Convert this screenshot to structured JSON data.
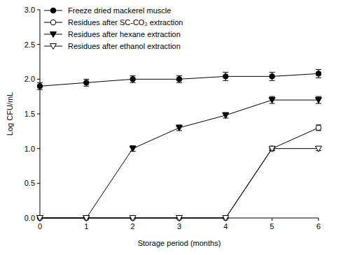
{
  "chart_data": {
    "type": "line",
    "x_label": "Storage period (months)",
    "y_label": "Log CFU/mL",
    "x": [
      0,
      1,
      2,
      3,
      4,
      5,
      6
    ],
    "xlim": [
      0,
      6
    ],
    "xticks": [
      0,
      1,
      2,
      3,
      4,
      5,
      6
    ],
    "ylim": [
      0,
      3
    ],
    "yticks": [
      {
        "value": 0,
        "label": "0.0"
      },
      0.5,
      {
        "value": 1,
        "label": "1.0"
      },
      1.5,
      {
        "value": 2,
        "label": "2.0"
      },
      2.5,
      {
        "value": 3,
        "label": "3.0"
      }
    ],
    "legend": "upper left",
    "grid": false,
    "series": [
      {
        "name": "Freeze dried mackerel muscle",
        "color": "#000000",
        "marker": "circle",
        "line_style": "solid",
        "values": [
          1.9,
          1.95,
          2.0,
          2.0,
          2.04,
          2.04,
          2.08
        ],
        "errors": [
          0.05,
          0.05,
          0.05,
          0.05,
          0.06,
          0.06,
          0.06
        ]
      },
      {
        "name": "Residues after SC-CO₂ extraction",
        "color": "#000000",
        "marker": "circle-open",
        "line_style": "solid",
        "values": [
          0,
          0,
          0,
          0,
          0,
          1.0,
          1.3
        ],
        "errors": [
          0,
          0,
          0,
          0,
          0,
          0.03,
          0.04
        ]
      },
      {
        "name": "Residues after hexane extraction",
        "color": "#000000",
        "marker": "triangle-down",
        "line_style": "solid",
        "values": [
          0,
          0,
          1.0,
          1.3,
          1.48,
          1.7,
          1.7
        ],
        "errors": [
          0,
          0,
          0.04,
          0.04,
          0.04,
          0.05,
          0.05
        ]
      },
      {
        "name": "Residues after ethanol extraction",
        "color": "#000000",
        "marker": "triangle-down-open",
        "line_style": "solid",
        "values": [
          0,
          0,
          0,
          0,
          0,
          1.0,
          1.0
        ],
        "errors": [
          0,
          0,
          0,
          0,
          0,
          0.03,
          0.03
        ]
      }
    ]
  }
}
